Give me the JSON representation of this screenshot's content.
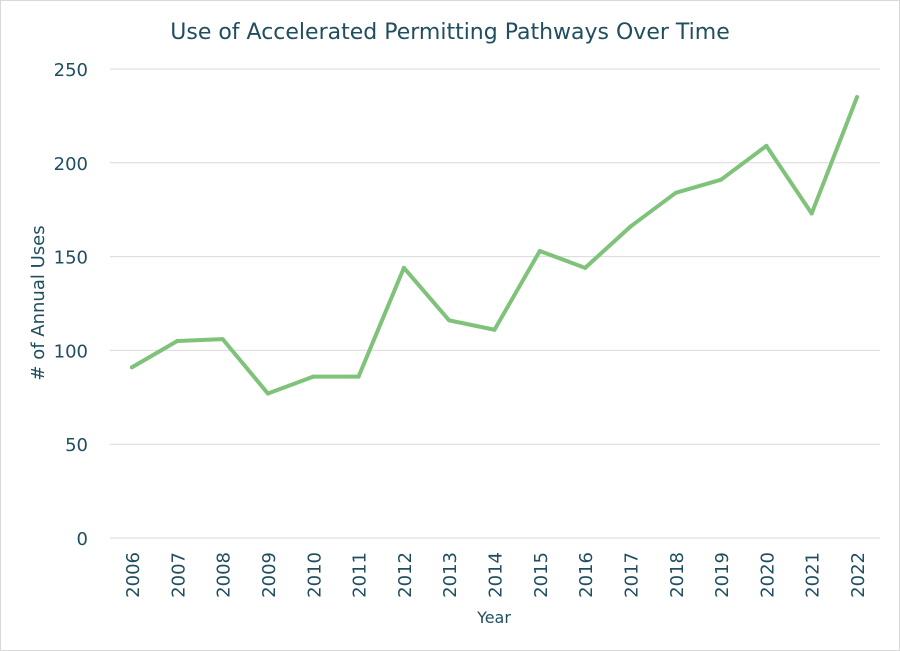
{
  "chart_data": {
    "type": "line",
    "title": "Use of Accelerated Permitting Pathways Over Time",
    "xlabel": "Year",
    "ylabel": "# of Annual Uses",
    "ylim": [
      0,
      250
    ],
    "yticks": [
      "0",
      "50",
      "100",
      "150",
      "200",
      "250"
    ],
    "grid": true,
    "categories": [
      "2006",
      "2007",
      "2008",
      "2009",
      "2010",
      "2011",
      "2012",
      "2013",
      "2014",
      "2015",
      "2016",
      "2017",
      "2018",
      "2019",
      "2020",
      "2021",
      "2022"
    ],
    "series": [
      {
        "values": [
          91,
          105,
          106,
          77,
          86,
          86,
          144,
          116,
          111,
          153,
          144,
          166,
          184,
          191,
          209,
          173,
          235
        ],
        "color": "#7fc27a"
      }
    ],
    "colors": {
      "text": "#1f4e5f",
      "grid": "#d9d9d9"
    }
  }
}
